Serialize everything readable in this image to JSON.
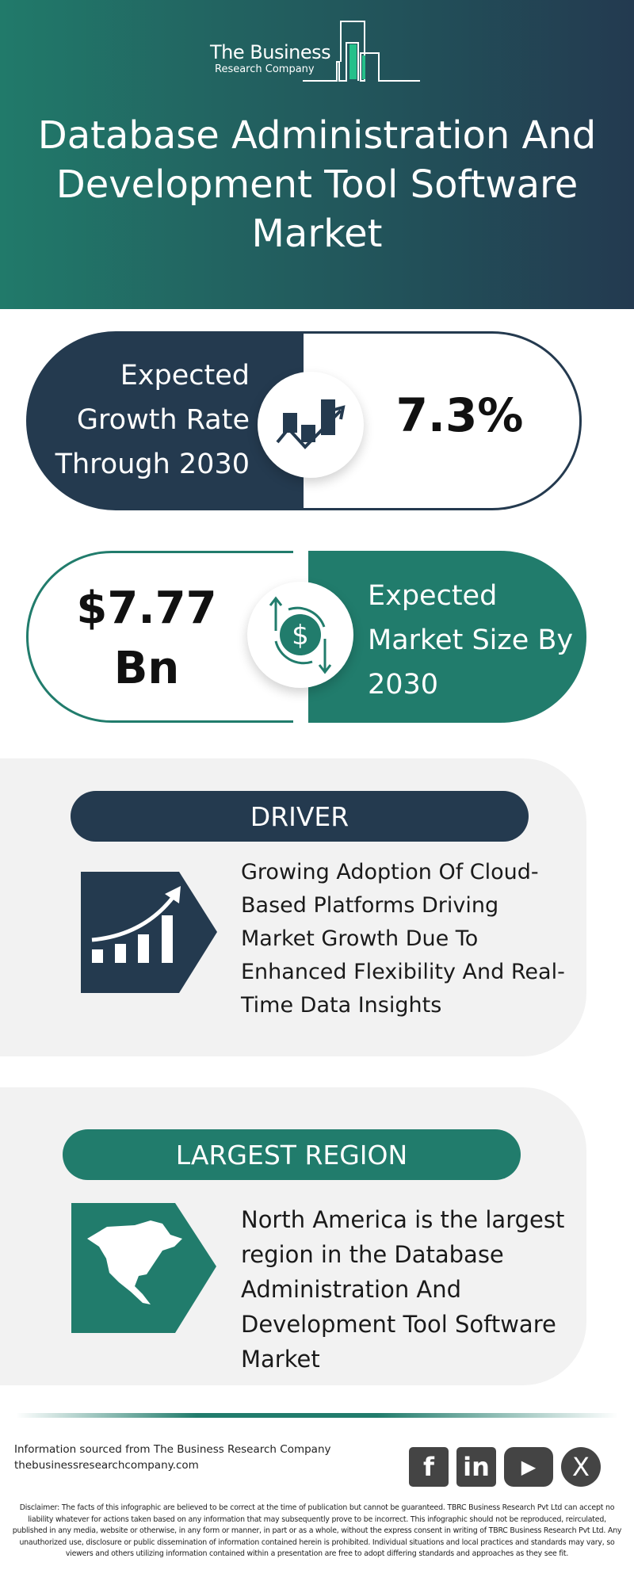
{
  "header": {
    "logo_line1": "The Business",
    "logo_line2": "Research Company",
    "title": "Database Administration And Development Tool Software Market"
  },
  "growth": {
    "label": "Expected Growth Rate Through 2030",
    "value": "7.3%",
    "icon": "chart-growth-icon"
  },
  "market_size": {
    "value": "$7.77 Bn",
    "label": "Expected Market Size By 2030",
    "icon": "dollar-exchange-icon"
  },
  "driver": {
    "heading": "DRIVER",
    "text": "Growing Adoption Of Cloud-Based Platforms Driving Market Growth Due To Enhanced Flexibility And Real-Time Data Insights",
    "icon": "rising-bar-chart-icon"
  },
  "region": {
    "heading": "LARGEST REGION",
    "text": "North America is the largest region in the Database Administration And Development Tool Software Market",
    "icon": "north-america-map-icon"
  },
  "footer": {
    "source_line": "Information sourced from The Business Research Company",
    "website": "thebusinessresearchcompany.com",
    "social": [
      {
        "name": "facebook",
        "glyph": "f"
      },
      {
        "name": "linkedin",
        "glyph": "in"
      },
      {
        "name": "youtube",
        "glyph": "▶"
      },
      {
        "name": "x",
        "glyph": "X"
      }
    ],
    "disclaimer": "Disclaimer: The facts of this infographic are believed to be correct at the time of publication but cannot be guaranteed. TBRC Business Research Pvt Ltd can accept no liability whatever for actions taken based on any information that may subsequently prove to be incorrect. This infographic should not be reproduced, reirculated, published in any media, website or otherwise, in any form or manner, in part or as a whole, without the express consent in writing of TBRC Business Research Pvt Ltd. Any unauthorized use, disclosure or public dissemination of information contained herein is prohibited. Individual situations and local practices and standards may vary, so viewers and others utilizing information contained within a presentation are free to adopt differing standards and approaches as they see fit."
  },
  "colors": {
    "dark": "#243a4f",
    "teal": "#217c6c",
    "panel": "#f2f2f2"
  }
}
